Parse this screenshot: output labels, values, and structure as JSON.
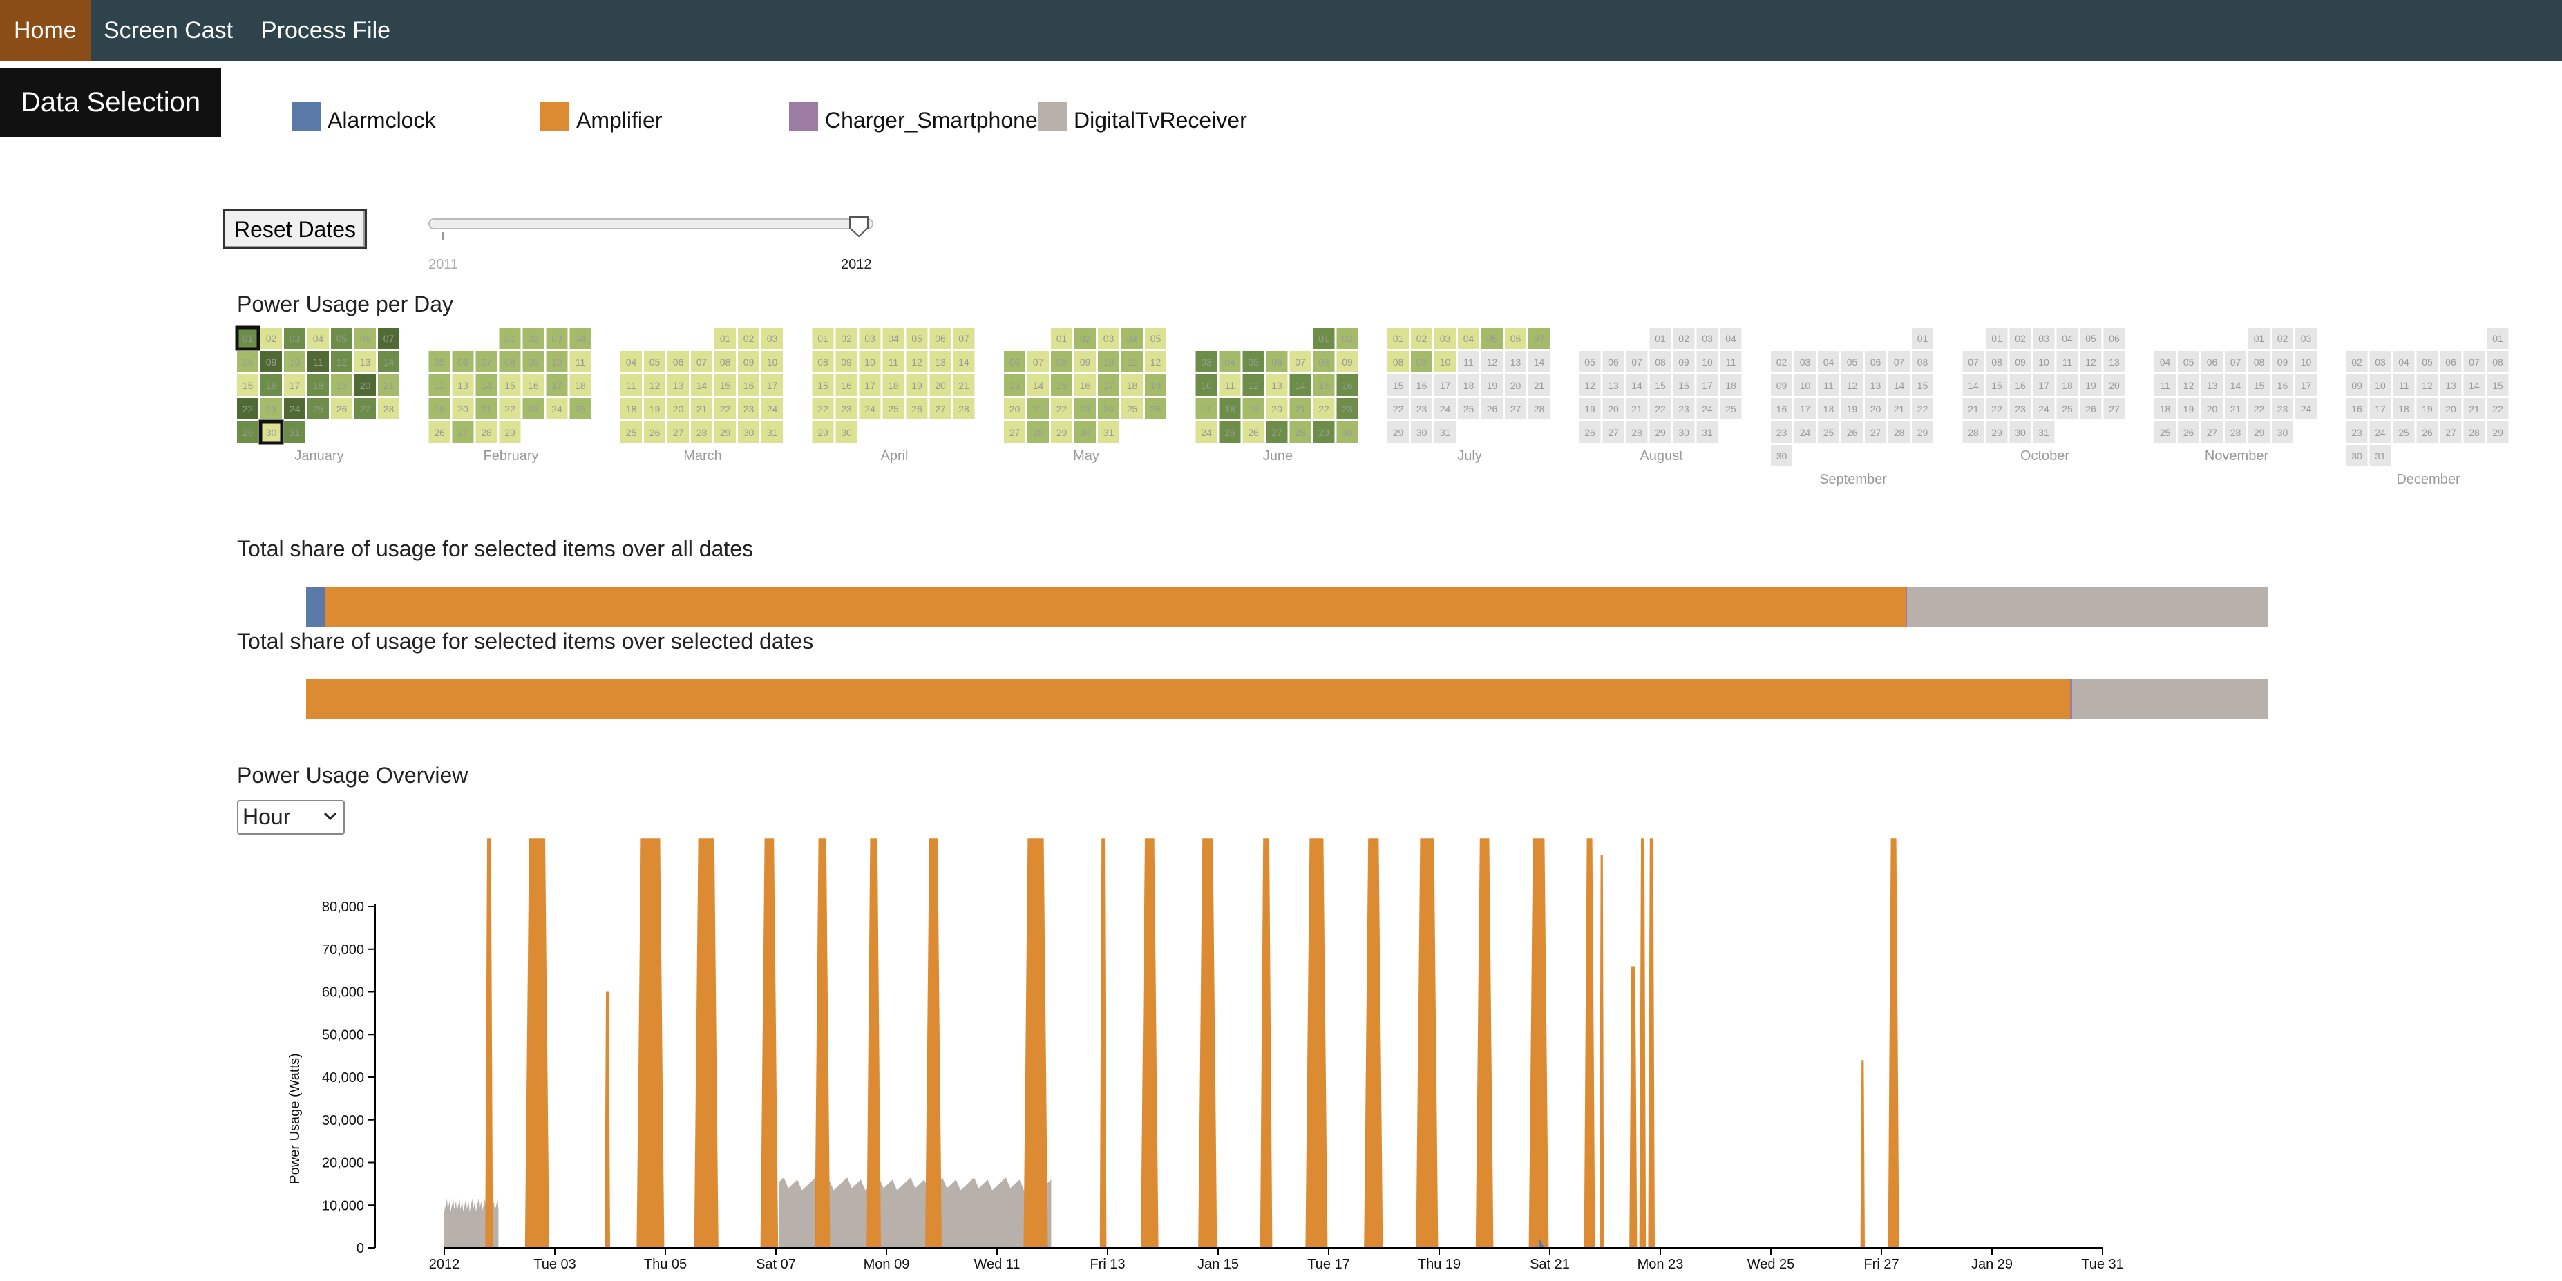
{
  "nav": {
    "items": [
      {
        "label": "Home",
        "active": true
      },
      {
        "label": "Screen Cast",
        "active": false
      },
      {
        "label": "Process File",
        "active": false
      }
    ]
  },
  "data_selection_label": "Data Selection",
  "legend": [
    {
      "label": "Alarmclock",
      "color": "#5b7aa8"
    },
    {
      "label": "Amplifier",
      "color": "#dd8b33"
    },
    {
      "label": "Charger_Smartphone",
      "color": "#9d7ca3"
    },
    {
      "label": "DigitalTvReceiver",
      "color": "#b8b0ab"
    }
  ],
  "reset_button": "Reset Dates",
  "year_slider": {
    "min_label": "2011",
    "max_label": "2012",
    "value": 2012
  },
  "calendar": {
    "title": "Power Usage per Day",
    "year": 2012,
    "months": [
      "January",
      "February",
      "March",
      "April",
      "May",
      "June",
      "July",
      "August",
      "September",
      "October",
      "November",
      "December"
    ],
    "colors": {
      "none": "#e6e6e6",
      "light": "#dbe291",
      "mid": "#a4bb6a",
      "dark": "#6d8e48",
      "darker": "#4f6a33"
    },
    "selected_days": [
      1,
      30
    ]
  },
  "share_all": {
    "title": "Total share of usage for selected items over all dates",
    "shares": [
      {
        "name": "Alarmclock",
        "value": 1.0,
        "color": "#5b7aa8"
      },
      {
        "name": "Amplifier",
        "value": 80.5,
        "color": "#dd8b33"
      },
      {
        "name": "Charger_Smartphone",
        "value": 0.1,
        "color": "#9d7ca3"
      },
      {
        "name": "DigitalTvReceiver",
        "value": 18.4,
        "color": "#b8b0ab"
      }
    ]
  },
  "share_selected": {
    "title": "Total share of usage for selected items over selected dates",
    "shares": [
      {
        "name": "Alarmclock",
        "value": 0.0,
        "color": "#5b7aa8"
      },
      {
        "name": "Amplifier",
        "value": 89.9,
        "color": "#dd8b33"
      },
      {
        "name": "Charger_Smartphone",
        "value": 0.1,
        "color": "#9d7ca3"
      },
      {
        "name": "DigitalTvReceiver",
        "value": 10.0,
        "color": "#b8b0ab"
      }
    ]
  },
  "overview": {
    "title": "Power Usage Overview",
    "granularity": "Hour"
  },
  "chart_data": {
    "type": "area",
    "ylabel": "Power Usage (Watts)",
    "ylim": [
      0,
      80000
    ],
    "yticks": [
      "0",
      "10,000",
      "20,000",
      "30,000",
      "40,000",
      "50,000",
      "60,000",
      "70,000",
      "80,000"
    ],
    "xlim": [
      "2012-01-01",
      "2012-01-31"
    ],
    "xtick_labels": [
      "2012",
      "Tue 03",
      "Thu 05",
      "Sat 07",
      "Mon 09",
      "Wed 11",
      "Fri 13",
      "Jan 15",
      "Tue 17",
      "Thu 19",
      "Sat 21",
      "Mon 23",
      "Wed 25",
      "Fri 27",
      "Jan 29",
      "Tue 31"
    ],
    "xtick_days": [
      1,
      3,
      5,
      7,
      9,
      11,
      13,
      15,
      17,
      19,
      21,
      23,
      25,
      27,
      29,
      31
    ],
    "series": [
      {
        "name": "Amplifier",
        "color": "#dd8b33",
        "peaks": [
          {
            "start": 1.74,
            "end": 1.88,
            "peak": 96000
          },
          {
            "start": 2.46,
            "end": 2.9,
            "peak": 96000
          },
          {
            "start": 3.9,
            "end": 4.0,
            "peak": 60000
          },
          {
            "start": 4.48,
            "end": 4.98,
            "peak": 96000
          },
          {
            "start": 5.52,
            "end": 5.96,
            "peak": 96000
          },
          {
            "start": 6.72,
            "end": 7.04,
            "peak": 96000
          },
          {
            "start": 7.7,
            "end": 7.98,
            "peak": 96000
          },
          {
            "start": 8.64,
            "end": 8.9,
            "peak": 96000
          },
          {
            "start": 9.7,
            "end": 10.0,
            "peak": 96000
          },
          {
            "start": 11.48,
            "end": 11.92,
            "peak": 96000
          },
          {
            "start": 12.86,
            "end": 12.98,
            "peak": 96000
          },
          {
            "start": 13.6,
            "end": 13.92,
            "peak": 96000
          },
          {
            "start": 14.64,
            "end": 14.98,
            "peak": 96000
          },
          {
            "start": 15.76,
            "end": 15.98,
            "peak": 96000
          },
          {
            "start": 16.58,
            "end": 16.98,
            "peak": 96000
          },
          {
            "start": 17.64,
            "end": 17.98,
            "peak": 96000
          },
          {
            "start": 18.58,
            "end": 18.98,
            "peak": 96000
          },
          {
            "start": 19.66,
            "end": 19.98,
            "peak": 96000
          },
          {
            "start": 20.62,
            "end": 20.98,
            "peak": 96000
          },
          {
            "start": 21.62,
            "end": 21.82,
            "peak": 96000
          },
          {
            "start": 21.9,
            "end": 21.98,
            "peak": 92000
          },
          {
            "start": 22.44,
            "end": 22.58,
            "peak": 66000
          },
          {
            "start": 22.62,
            "end": 22.74,
            "peak": 96000
          },
          {
            "start": 22.78,
            "end": 22.9,
            "peak": 96000
          },
          {
            "start": 26.62,
            "end": 26.7,
            "peak": 44000
          },
          {
            "start": 27.12,
            "end": 27.32,
            "peak": 96000
          }
        ]
      },
      {
        "name": "DigitalTvReceiver",
        "color": "#b8b0ab",
        "blocks": [
          {
            "start": 1.0,
            "end": 1.98,
            "level": 10000
          },
          {
            "start": 7.06,
            "end": 11.98,
            "level": 15000
          }
        ]
      },
      {
        "name": "Alarmclock",
        "color": "#5b7aa8",
        "blocks": [
          {
            "start": 20.8,
            "end": 20.9,
            "level": 2500
          }
        ]
      }
    ]
  }
}
